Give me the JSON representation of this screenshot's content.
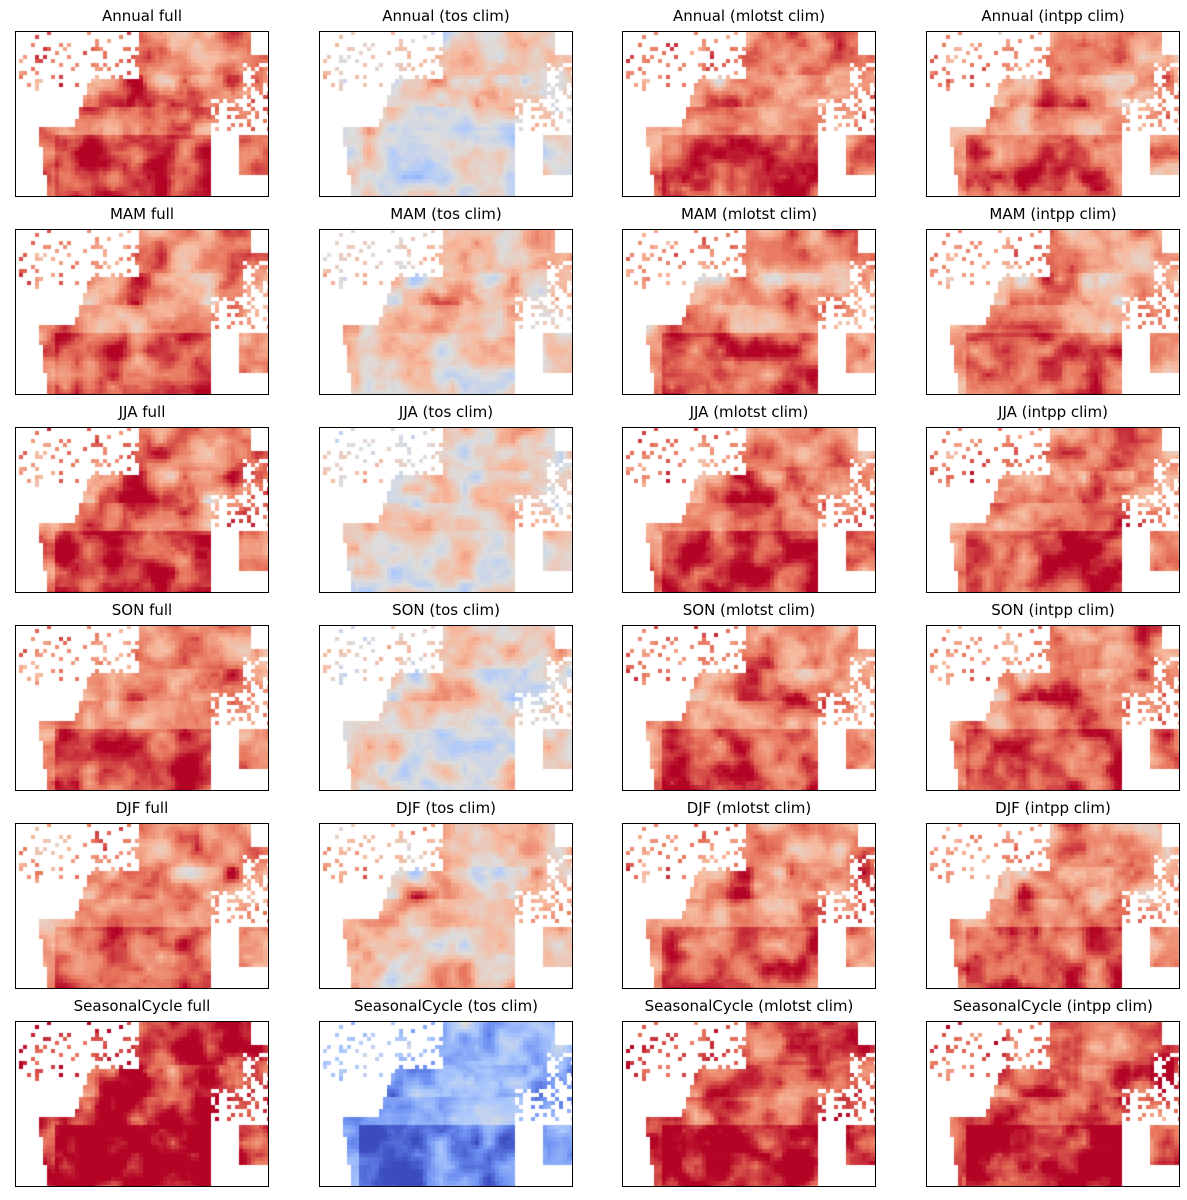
{
  "figure": {
    "colormap": "coolwarm",
    "colormap_stops": [
      "#3b4cc0",
      "#6f92f3",
      "#aac7fd",
      "#dddddd",
      "#f7b89c",
      "#e7745b",
      "#b40426"
    ],
    "background": "#ffffff",
    "frame_color": "#000000"
  },
  "chart_data": [
    {
      "type": "heatmap",
      "title": "Annual full",
      "row": "Annual",
      "column": "full",
      "value_level": 0.78
    },
    {
      "type": "heatmap",
      "title": "Annual (tos clim)",
      "row": "Annual",
      "column": "tos clim",
      "value_level": 0.55
    },
    {
      "type": "heatmap",
      "title": "Annual (mlotst clim)",
      "row": "Annual",
      "column": "mlotst clim",
      "value_level": 0.78
    },
    {
      "type": "heatmap",
      "title": "Annual (intpp clim)",
      "row": "Annual",
      "column": "intpp clim",
      "value_level": 0.76
    },
    {
      "type": "heatmap",
      "title": "MAM full",
      "row": "MAM",
      "column": "full",
      "value_level": 0.76
    },
    {
      "type": "heatmap",
      "title": "MAM (tos clim)",
      "row": "MAM",
      "column": "tos clim",
      "value_level": 0.62
    },
    {
      "type": "heatmap",
      "title": "MAM (mlotst clim)",
      "row": "MAM",
      "column": "mlotst clim",
      "value_level": 0.74
    },
    {
      "type": "heatmap",
      "title": "MAM (intpp clim)",
      "row": "MAM",
      "column": "intpp clim",
      "value_level": 0.74
    },
    {
      "type": "heatmap",
      "title": "JJA full",
      "row": "JJA",
      "column": "full",
      "value_level": 0.8
    },
    {
      "type": "heatmap",
      "title": "JJA (tos clim)",
      "row": "JJA",
      "column": "tos clim",
      "value_level": 0.57
    },
    {
      "type": "heatmap",
      "title": "JJA (mlotst clim)",
      "row": "JJA",
      "column": "mlotst clim",
      "value_level": 0.8
    },
    {
      "type": "heatmap",
      "title": "JJA (intpp clim)",
      "row": "JJA",
      "column": "intpp clim",
      "value_level": 0.79
    },
    {
      "type": "heatmap",
      "title": "SON full",
      "row": "SON",
      "column": "full",
      "value_level": 0.78
    },
    {
      "type": "heatmap",
      "title": "SON (tos clim)",
      "row": "SON",
      "column": "tos clim",
      "value_level": 0.58
    },
    {
      "type": "heatmap",
      "title": "SON (mlotst clim)",
      "row": "SON",
      "column": "mlotst clim",
      "value_level": 0.78
    },
    {
      "type": "heatmap",
      "title": "SON (intpp clim)",
      "row": "SON",
      "column": "intpp clim",
      "value_level": 0.79
    },
    {
      "type": "heatmap",
      "title": "DJF full",
      "row": "DJF",
      "column": "full",
      "value_level": 0.74
    },
    {
      "type": "heatmap",
      "title": "DJF (tos clim)",
      "row": "DJF",
      "column": "tos clim",
      "value_level": 0.68
    },
    {
      "type": "heatmap",
      "title": "DJF (mlotst clim)",
      "row": "DJF",
      "column": "mlotst clim",
      "value_level": 0.75
    },
    {
      "type": "heatmap",
      "title": "DJF (intpp clim)",
      "row": "DJF",
      "column": "intpp clim",
      "value_level": 0.75
    },
    {
      "type": "heatmap",
      "title": "SeasonalCycle full",
      "row": "SeasonalCycle",
      "column": "full",
      "value_level": 0.92
    },
    {
      "type": "heatmap",
      "title": "SeasonalCycle (tos clim)",
      "row": "SeasonalCycle",
      "column": "tos clim",
      "value_level": 0.3
    },
    {
      "type": "heatmap",
      "title": "SeasonalCycle (mlotst clim)",
      "row": "SeasonalCycle",
      "column": "mlotst clim",
      "value_level": 0.88
    },
    {
      "type": "heatmap",
      "title": "SeasonalCycle (intpp clim)",
      "row": "SeasonalCycle",
      "column": "intpp clim",
      "value_level": 0.86
    }
  ]
}
